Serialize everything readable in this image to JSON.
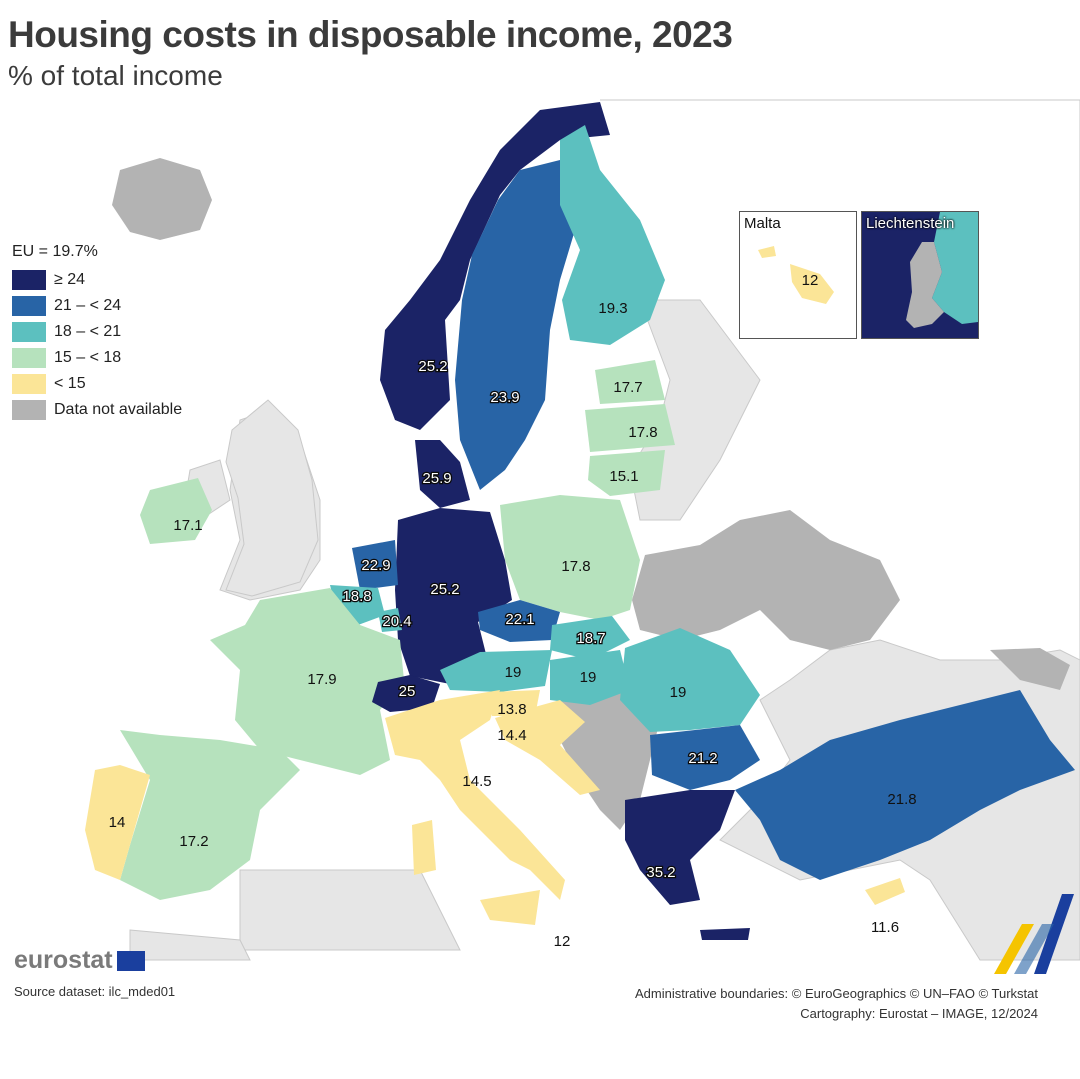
{
  "title": "Housing costs in disposable income, 2023",
  "subtitle": "% of total income",
  "legend": {
    "eu_average": "EU = 19.7%",
    "classes": [
      {
        "label": "≥ 24",
        "color": "#1b2366"
      },
      {
        "label": "21 – < 24",
        "color": "#2864a6"
      },
      {
        "label": "18 – < 21",
        "color": "#5cc0bf"
      },
      {
        "label": "15 – < 18",
        "color": "#b6e2bd"
      },
      {
        "label": "< 15",
        "color": "#fbe597"
      },
      {
        "label": "Data not available",
        "color": "#b3b3b3"
      }
    ]
  },
  "map_data": {
    "type": "choropleth",
    "unit": "% of total income",
    "regions": [
      {
        "country": "Norway",
        "value": "25.2"
      },
      {
        "country": "Sweden",
        "value": "23.9"
      },
      {
        "country": "Finland",
        "value": "19.3"
      },
      {
        "country": "Estonia",
        "value": "17.7"
      },
      {
        "country": "Latvia",
        "value": "17.8"
      },
      {
        "country": "Lithuania",
        "value": "15.1"
      },
      {
        "country": "Denmark",
        "value": "25.9"
      },
      {
        "country": "Ireland",
        "value": "17.1"
      },
      {
        "country": "Netherlands",
        "value": "22.9"
      },
      {
        "country": "Belgium",
        "value": "18.8"
      },
      {
        "country": "Luxembourg",
        "value": "20.4"
      },
      {
        "country": "Germany",
        "value": "25.2"
      },
      {
        "country": "Poland",
        "value": "17.8"
      },
      {
        "country": "Czechia",
        "value": "22.1"
      },
      {
        "country": "Slovakia",
        "value": "18.7"
      },
      {
        "country": "Austria",
        "value": "19"
      },
      {
        "country": "Hungary",
        "value": "19"
      },
      {
        "country": "Romania",
        "value": "19"
      },
      {
        "country": "France",
        "value": "17.9"
      },
      {
        "country": "Switzerland",
        "value": "25"
      },
      {
        "country": "Slovenia",
        "value": "13.8"
      },
      {
        "country": "Croatia",
        "value": "14.4"
      },
      {
        "country": "Italy",
        "value": "14.5"
      },
      {
        "country": "Bulgaria",
        "value": "21.2"
      },
      {
        "country": "Türkiye",
        "value": "21.8"
      },
      {
        "country": "Portugal",
        "value": "14"
      },
      {
        "country": "Spain",
        "value": "17.2"
      },
      {
        "country": "Greece",
        "value": "35.2"
      },
      {
        "country": "Cyprus",
        "value": "11.6"
      },
      {
        "country": "Malta",
        "value": "12"
      },
      {
        "country": "Liechtenstein",
        "value": ""
      }
    ]
  },
  "insets": {
    "malta": {
      "name": "Malta",
      "value": "12"
    },
    "liechtenstein": {
      "name": "Liechtenstein"
    }
  },
  "footer": {
    "logo_text": "eurostat",
    "source": "Source dataset: ilc_mded01",
    "credit_line1": "Administrative boundaries: © EuroGeographics © UN–FAO © Turkstat",
    "credit_line2": "Cartography: Eurostat – IMAGE, 12/2024"
  },
  "colors": {
    "sea": "#ffffff",
    "non_eu_land": "#e6e6e6",
    "title": "#3b3b3b"
  }
}
